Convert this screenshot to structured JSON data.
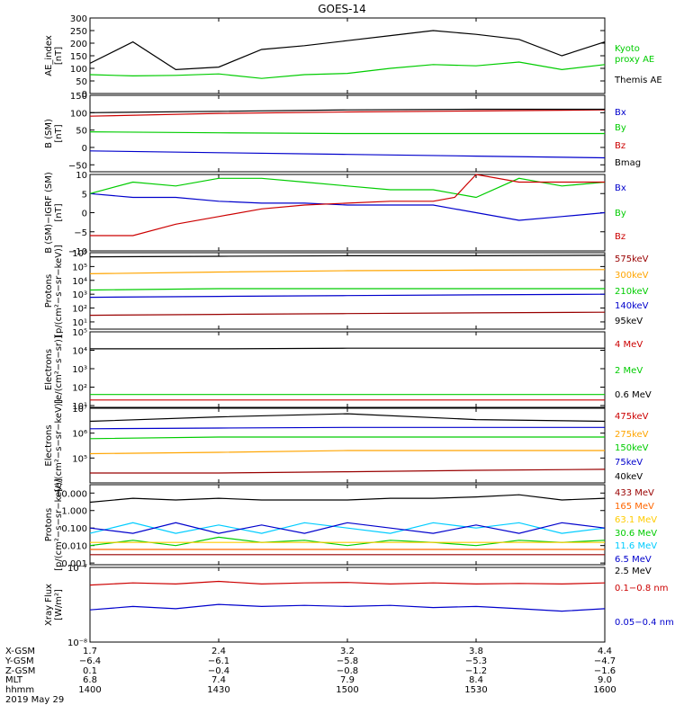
{
  "title": "GOES-14",
  "date_label": "2019 May 29",
  "chart_data": [
    {
      "type": "line",
      "id": "ae",
      "ylabel": "AE_index\n[nT]",
      "ylim": [
        0,
        300
      ],
      "yticks": [
        0,
        50,
        100,
        150,
        200,
        250,
        300
      ],
      "ytick_labels": [
        "0",
        "50",
        "100",
        "150",
        "200",
        "250",
        "300"
      ],
      "x": [
        1400,
        1410,
        1420,
        1430,
        1440,
        1450,
        1500,
        1510,
        1520,
        1530,
        1540,
        1550,
        1600
      ],
      "series": [
        {
          "name": "Kyoto proxy AE",
          "color": "#00cc00",
          "values": [
            75,
            70,
            72,
            78,
            60,
            75,
            80,
            100,
            115,
            110,
            125,
            95,
            115
          ]
        },
        {
          "name": "Themis AE",
          "color": "#000000",
          "values": [
            120,
            205,
            95,
            105,
            175,
            190,
            210,
            230,
            250,
            235,
            215,
            150,
            205
          ]
        }
      ],
      "legend": [
        {
          "text": "Kyoto",
          "color": "#00cc00"
        },
        {
          "text": "proxy AE",
          "color": "#00cc00"
        },
        {
          "text": "Themis AE",
          "color": "#000000"
        }
      ]
    },
    {
      "type": "line",
      "id": "b_sm",
      "ylabel": "B (SM)\n[nT]",
      "ylim": [
        -70,
        150
      ],
      "yticks": [
        -50,
        0,
        50,
        100,
        150
      ],
      "ytick_labels": [
        "−50",
        "0",
        "50",
        "100",
        "150"
      ],
      "x": [
        1400,
        1430,
        1500,
        1530,
        1600
      ],
      "series": [
        {
          "name": "Bx",
          "color": "#0000cc",
          "values": [
            -10,
            -15,
            -20,
            -25,
            -30
          ]
        },
        {
          "name": "By",
          "color": "#00cc00",
          "values": [
            45,
            42,
            40,
            40,
            40
          ]
        },
        {
          "name": "Bz",
          "color": "#cc0000",
          "values": [
            90,
            98,
            102,
            105,
            108
          ]
        },
        {
          "name": "Bmag",
          "color": "#000000",
          "values": [
            100,
            104,
            108,
            110,
            110
          ]
        }
      ],
      "legend": [
        {
          "text": "Bx",
          "color": "#0000cc"
        },
        {
          "text": "By",
          "color": "#00cc00"
        },
        {
          "text": "Bz",
          "color": "#cc0000"
        },
        {
          "text": "Bmag",
          "color": "#000000"
        }
      ]
    },
    {
      "type": "line",
      "id": "b_igrf",
      "ylabel": "B (SM)−IGRF (SM)\n[nT]",
      "ylim": [
        -10,
        10
      ],
      "yticks": [
        -10,
        -5,
        0,
        5,
        10
      ],
      "ytick_labels": [
        "−10",
        "−5",
        "0",
        "5",
        "10"
      ],
      "x": [
        1400,
        1410,
        1420,
        1430,
        1440,
        1450,
        1500,
        1510,
        1520,
        1525,
        1530,
        1540,
        1550,
        1600
      ],
      "series": [
        {
          "name": "Bx",
          "color": "#0000cc",
          "values": [
            5,
            4,
            4,
            3,
            2.5,
            2.5,
            2,
            2,
            2,
            1,
            0,
            -2,
            -1,
            0
          ]
        },
        {
          "name": "By",
          "color": "#00cc00",
          "values": [
            5,
            8,
            7,
            9,
            9,
            8,
            7,
            6,
            6,
            5,
            4,
            9,
            7,
            8
          ]
        },
        {
          "name": "Bz",
          "color": "#cc0000",
          "values": [
            -6,
            -6,
            -3,
            -1,
            1,
            2,
            2.5,
            3,
            3,
            4,
            10,
            8,
            8,
            8
          ]
        }
      ],
      "legend": [
        {
          "text": "Bx",
          "color": "#0000cc"
        },
        {
          "text": "By",
          "color": "#00cc00"
        },
        {
          "text": "Bz",
          "color": "#cc0000"
        }
      ]
    },
    {
      "type": "line",
      "id": "protons_mev",
      "ylabel": "Protons\n[p/(cm²−s−sr−keV)]",
      "log": true,
      "ylim": [
        3,
        1000000
      ],
      "yticks": [
        10,
        100,
        1000,
        10000,
        100000,
        1000000
      ],
      "ytick_labels": [
        "10¹",
        "10²",
        "10³",
        "10⁴",
        "10⁵",
        "10⁶"
      ],
      "x": [
        1400,
        1430,
        1500,
        1530,
        1600
      ],
      "series": [
        {
          "name": "575keV",
          "color": "#000000",
          "values": [
            500000,
            550000,
            600000,
            600000,
            650000
          ]
        },
        {
          "name": "300keV",
          "color": "#ffa500",
          "values": [
            30000,
            40000,
            50000,
            55000,
            60000
          ]
        },
        {
          "name": "210keV",
          "color": "#00cc00",
          "values": [
            2000,
            2500,
            2500,
            2500,
            2500
          ]
        },
        {
          "name": "140keV",
          "color": "#0000cc",
          "values": [
            600,
            700,
            800,
            900,
            1000
          ]
        },
        {
          "name": "95keV",
          "color": "#990000",
          "values": [
            30,
            35,
            40,
            45,
            50
          ]
        }
      ],
      "legend": [
        {
          "text": "575keV",
          "color": "#990000"
        },
        {
          "text": "300keV",
          "color": "#ffa500"
        },
        {
          "text": "210keV",
          "color": "#00cc00"
        },
        {
          "text": "140keV",
          "color": "#0000cc"
        },
        {
          "text": "95keV",
          "color": "#000000"
        }
      ]
    },
    {
      "type": "line",
      "id": "electrons_mev",
      "ylabel": "Electrons\n[e/(cm²−s−sr)]",
      "log": true,
      "ylim": [
        8,
        100000
      ],
      "yticks": [
        10,
        100,
        1000,
        10000,
        100000
      ],
      "ytick_labels": [
        "10¹",
        "10²",
        "10³",
        "10⁴",
        "10⁵"
      ],
      "x": [
        1400,
        1430,
        1500,
        1530,
        1600
      ],
      "series": [
        {
          "name": "0.6 MeV",
          "color": "#000000",
          "values": [
            12000,
            12000,
            13000,
            13000,
            13000
          ]
        },
        {
          "name": "2 MeV",
          "color": "#00cc00",
          "values": [
            40,
            40,
            40,
            40,
            40
          ]
        },
        {
          "name": "4 MeV",
          "color": "#cc0000",
          "values": [
            20,
            20,
            20,
            20,
            20
          ]
        }
      ],
      "legend": [
        {
          "text": "4 MeV",
          "color": "#cc0000"
        },
        {
          "text": "2 MeV",
          "color": "#00cc00"
        },
        {
          "text": "0.6 MeV",
          "color": "#000000"
        }
      ]
    },
    {
      "type": "line",
      "id": "electrons_kev",
      "ylabel": "Electrons\n[e/(cm²−s−sr−keV)]",
      "log": true,
      "ylim": [
        10000,
        10000000
      ],
      "yticks": [
        100000,
        1000000,
        10000000
      ],
      "ytick_labels": [
        "10⁵",
        "10⁶",
        "10⁷"
      ],
      "x": [
        1400,
        1430,
        1500,
        1530,
        1600
      ],
      "series": [
        {
          "name": "475keV",
          "color": "#000000",
          "values": [
            3000000,
            4500000,
            6000000,
            3500000,
            3000000
          ]
        },
        {
          "name": "275keV",
          "color": "#0000cc",
          "values": [
            1500000,
            1600000,
            1700000,
            1700000,
            1700000
          ]
        },
        {
          "name": "150keV",
          "color": "#00cc00",
          "values": [
            600000,
            700000,
            700000,
            700000,
            700000
          ]
        },
        {
          "name": "75keV",
          "color": "#ffa500",
          "values": [
            150000,
            170000,
            200000,
            200000,
            200000
          ]
        },
        {
          "name": "40keV",
          "color": "#990000",
          "values": [
            25000,
            25000,
            28000,
            32000,
            35000
          ]
        }
      ],
      "legend": [
        {
          "text": "475keV",
          "color": "#cc0000"
        },
        {
          "text": "275keV",
          "color": "#ffa500"
        },
        {
          "text": "150keV",
          "color": "#00cc00"
        },
        {
          "text": "75keV",
          "color": "#0000cc"
        },
        {
          "text": "40keV",
          "color": "#000000"
        }
      ]
    },
    {
      "type": "line",
      "id": "protons_hi",
      "ylabel": "Protons\n[p/(cm²−s−sr−keV)]",
      "log": true,
      "ylim": [
        0.0008,
        30
      ],
      "yticks": [
        0.001,
        0.01,
        0.1,
        1,
        10
      ],
      "ytick_labels": [
        "0.001",
        "0.010",
        "0.100",
        "1.000",
        "10.000"
      ],
      "x": [
        1400,
        1410,
        1420,
        1430,
        1440,
        1450,
        1500,
        1510,
        1520,
        1530,
        1540,
        1550,
        1600
      ],
      "series": [
        {
          "name": "2.5 MeV",
          "color": "#000000",
          "values": [
            3,
            5,
            4,
            5,
            4,
            4,
            4,
            5,
            5,
            6,
            8,
            4,
            5
          ]
        },
        {
          "name": "11.6 MeV",
          "color": "#00ccff",
          "values": [
            0.05,
            0.2,
            0.05,
            0.15,
            0.05,
            0.2,
            0.1,
            0.05,
            0.2,
            0.1,
            0.2,
            0.05,
            0.1
          ]
        },
        {
          "name": "6.5 MeV",
          "color": "#0000cc",
          "values": [
            0.1,
            0.05,
            0.2,
            0.05,
            0.15,
            0.05,
            0.2,
            0.1,
            0.05,
            0.15,
            0.05,
            0.2,
            0.1
          ]
        },
        {
          "name": "30.6 MeV",
          "color": "#00cc00",
          "values": [
            0.01,
            0.02,
            0.01,
            0.03,
            0.015,
            0.02,
            0.01,
            0.02,
            0.015,
            0.01,
            0.02,
            0.015,
            0.02
          ]
        },
        {
          "name": "63.1 MeV",
          "color": "#ffcc00",
          "values": [
            0.015,
            0.015,
            0.015,
            0.015,
            0.015,
            0.015,
            0.015,
            0.015,
            0.015,
            0.015,
            0.015,
            0.015,
            0.015
          ]
        },
        {
          "name": "165 MeV",
          "color": "#ff6600",
          "values": [
            0.006,
            0.006,
            0.006,
            0.006,
            0.006,
            0.006,
            0.006,
            0.006,
            0.006,
            0.006,
            0.006,
            0.006,
            0.006
          ]
        },
        {
          "name": "433 MeV",
          "color": "#990000",
          "values": [
            0.003,
            0.003,
            0.003,
            0.003,
            0.003,
            0.003,
            0.003,
            0.003,
            0.003,
            0.003,
            0.003,
            0.003,
            0.003
          ]
        }
      ],
      "legend": [
        {
          "text": "433 MeV",
          "color": "#990000"
        },
        {
          "text": "165 MeV",
          "color": "#ff6600"
        },
        {
          "text": "63.1 MeV",
          "color": "#ffcc00"
        },
        {
          "text": "30.6 MeV",
          "color": "#00cc00"
        },
        {
          "text": "11.6 MeV",
          "color": "#00ccff"
        },
        {
          "text": "6.5 MeV",
          "color": "#0000cc"
        },
        {
          "text": "2.5 MeV",
          "color": "#000000"
        }
      ]
    },
    {
      "type": "line",
      "id": "xray",
      "ylabel": "Xray Flux\n[W/m²]",
      "log": true,
      "ylim": [
        1e-08,
        1e-07
      ],
      "yticks": [
        1e-08,
        1e-07
      ],
      "ytick_labels": [
        "10⁻⁸",
        "10⁻⁷"
      ],
      "x": [
        1400,
        1410,
        1420,
        1430,
        1440,
        1450,
        1500,
        1510,
        1520,
        1530,
        1540,
        1550,
        1600
      ],
      "series": [
        {
          "name": "0.1−0.8 nm",
          "color": "#cc0000",
          "values": [
            5.8e-08,
            6.2e-08,
            6e-08,
            6.5e-08,
            6e-08,
            6.2e-08,
            6.3e-08,
            6e-08,
            6.2e-08,
            6e-08,
            6.1e-08,
            6e-08,
            6.2e-08
          ]
        },
        {
          "name": "0.05−0.4 nm",
          "color": "#0000cc",
          "values": [
            2.7e-08,
            3e-08,
            2.8e-08,
            3.2e-08,
            3e-08,
            3.1e-08,
            3e-08,
            3.1e-08,
            2.9e-08,
            3e-08,
            2.8e-08,
            2.6e-08,
            2.8e-08
          ]
        }
      ],
      "legend": [
        {
          "text": "0.1−0.8 nm",
          "color": "#cc0000"
        },
        {
          "text": "0.05−0.4 nm",
          "color": "#0000cc"
        }
      ]
    }
  ],
  "ephemeris": {
    "row_labels": [
      "X-GSM",
      "Y-GSM",
      "Z-GSM",
      "MLT",
      "hhmm"
    ],
    "columns": [
      {
        "values": [
          "1.7",
          "−6.4",
          "0.1",
          "6.8",
          "1400"
        ]
      },
      {
        "values": [
          "2.4",
          "−6.1",
          "−0.4",
          "7.4",
          "1430"
        ]
      },
      {
        "values": [
          "3.2",
          "−5.8",
          "−0.8",
          "7.9",
          "1500"
        ]
      },
      {
        "values": [
          "3.8",
          "−5.3",
          "−1.2",
          "8.4",
          "1530"
        ]
      },
      {
        "values": [
          "4.4",
          "−4.7",
          "−1.6",
          "9.0",
          "1600"
        ]
      }
    ]
  }
}
